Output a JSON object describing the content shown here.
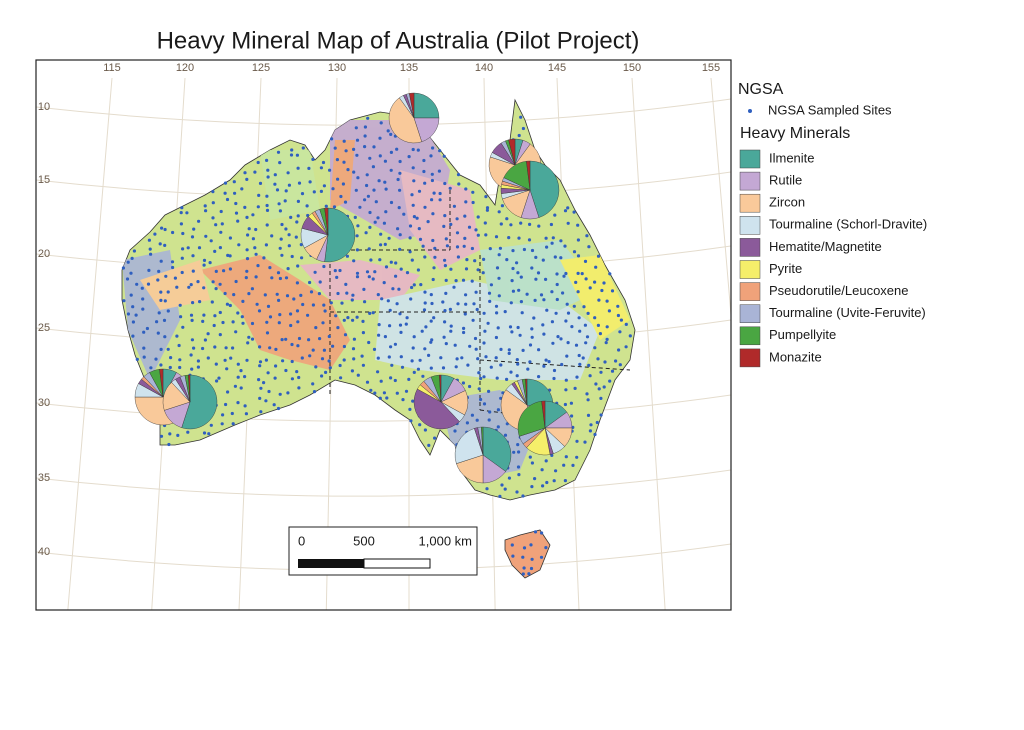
{
  "title": "Heavy Mineral Map of Australia (Pilot Project)",
  "graticule": {
    "longitudes": [
      115,
      120,
      125,
      130,
      135,
      140,
      145,
      150,
      155
    ],
    "latitudes": [
      10,
      15,
      20,
      25,
      30,
      35,
      40
    ]
  },
  "legend": {
    "sites_heading": "NGSA",
    "sites": "NGSA Sampled Sites",
    "minerals_heading": "Heavy Minerals",
    "minerals": [
      {
        "name": "Ilmenite",
        "color": "#4aa89a"
      },
      {
        "name": "Rutile",
        "color": "#c4a8d4"
      },
      {
        "name": "Zircon",
        "color": "#f9c99a"
      },
      {
        "name": "Tourmaline (Schorl-Dravite)",
        "color": "#cfe3ee"
      },
      {
        "name": "Hematite/Magnetite",
        "color": "#8b5a9a"
      },
      {
        "name": "Pyrite",
        "color": "#f5ee6a"
      },
      {
        "name": "Pseudorutile/Leucoxene",
        "color": "#f0a27a"
      },
      {
        "name": "Tourmaline (Uvite-Feruvite)",
        "color": "#a9b4d6"
      },
      {
        "name": "Pumpellyite",
        "color": "#4aa642"
      },
      {
        "name": "Monazite",
        "color": "#b02a2a"
      }
    ]
  },
  "scale_bar": {
    "labels": [
      "0",
      "500",
      "1,000 km"
    ]
  },
  "pies": [
    {
      "values": [
        25,
        20,
        45,
        3,
        2,
        0,
        0,
        2,
        0,
        3
      ]
    },
    {
      "values": [
        5,
        5,
        70,
        3,
        8,
        0,
        0,
        3,
        2,
        4
      ]
    },
    {
      "values": [
        45,
        10,
        15,
        3,
        3,
        2,
        2,
        2,
        16,
        2
      ]
    },
    {
      "values": [
        52,
        5,
        10,
        12,
        8,
        3,
        2,
        3,
        3,
        2
      ]
    },
    {
      "values": [
        8,
        12,
        55,
        8,
        3,
        0,
        2,
        4,
        6,
        2
      ]
    },
    {
      "values": [
        55,
        15,
        18,
        3,
        3,
        0,
        0,
        3,
        2,
        1
      ]
    },
    {
      "values": [
        8,
        10,
        15,
        5,
        45,
        3,
        3,
        5,
        5,
        1
      ]
    },
    {
      "values": [
        30,
        15,
        40,
        5,
        2,
        2,
        0,
        3,
        2,
        1
      ]
    },
    {
      "values": [
        15,
        10,
        12,
        8,
        2,
        15,
        3,
        5,
        28,
        2
      ]
    },
    {
      "values": [
        35,
        15,
        20,
        25,
        2,
        0,
        0,
        2,
        1,
        0
      ]
    }
  ]
}
